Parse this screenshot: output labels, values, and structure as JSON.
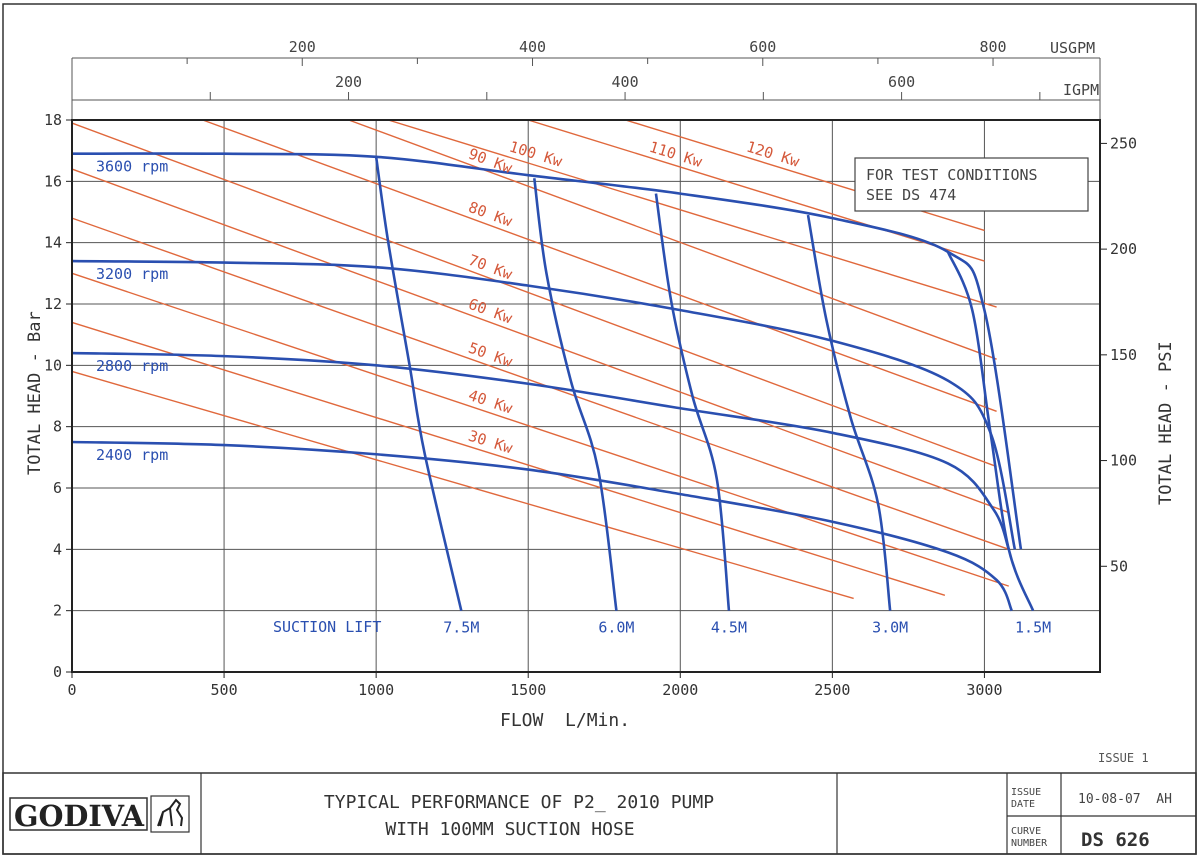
{
  "chart_data": {
    "type": "line",
    "xlabel": "FLOW  L/Min.",
    "ylabel": "TOTAL HEAD - Bar",
    "ylabel_right": "TOTAL HEAD - PSI",
    "xlim": [
      0,
      3380
    ],
    "ylim": [
      0,
      18
    ],
    "x_ticks": [
      0,
      500,
      1000,
      1500,
      2000,
      2500,
      3000
    ],
    "y_ticks": [
      0,
      2,
      4,
      6,
      8,
      10,
      12,
      14,
      16,
      18
    ],
    "psi_ticks": [
      50,
      100,
      150,
      200,
      250
    ],
    "usgpm_ticks": [
      200,
      400,
      600,
      800
    ],
    "usgpm_unit": "USGPM",
    "igpm_ticks": [
      200,
      400,
      600
    ],
    "igpm_unit": "IGPM",
    "grid": true,
    "note_lines": [
      "FOR TEST CONDITIONS",
      "SEE DS 474"
    ],
    "suction_lift_label": "SUCTION LIFT",
    "speed_curves": [
      {
        "name": "3600 rpm",
        "points": [
          [
            0,
            16.9
          ],
          [
            500,
            16.9
          ],
          [
            1000,
            16.8
          ],
          [
            1500,
            16.2
          ],
          [
            2000,
            15.6
          ],
          [
            2500,
            14.8
          ],
          [
            2880,
            13.7
          ],
          [
            3000,
            11.8
          ],
          [
            3120,
            4.0
          ]
        ]
      },
      {
        "name": "3200 rpm",
        "points": [
          [
            0,
            13.4
          ],
          [
            500,
            13.35
          ],
          [
            1000,
            13.2
          ],
          [
            1500,
            12.6
          ],
          [
            2000,
            11.8
          ],
          [
            2500,
            10.8
          ],
          [
            2880,
            9.5
          ],
          [
            3020,
            7.8
          ],
          [
            3100,
            4.0
          ]
        ]
      },
      {
        "name": "2800 rpm",
        "points": [
          [
            0,
            10.4
          ],
          [
            500,
            10.3
          ],
          [
            1000,
            10.0
          ],
          [
            1500,
            9.4
          ],
          [
            2000,
            8.6
          ],
          [
            2500,
            7.8
          ],
          [
            2880,
            6.8
          ],
          [
            3030,
            5.3
          ],
          [
            3080,
            4.0
          ]
        ]
      },
      {
        "name": "2400 rpm",
        "points": [
          [
            0,
            7.5
          ],
          [
            500,
            7.4
          ],
          [
            1000,
            7.1
          ],
          [
            1500,
            6.6
          ],
          [
            2000,
            5.8
          ],
          [
            2500,
            4.9
          ],
          [
            2880,
            3.9
          ],
          [
            3040,
            3.0
          ],
          [
            3090,
            2.0
          ]
        ]
      }
    ],
    "suction_lift_curves": [
      {
        "name": "7.5M",
        "points": [
          [
            1000,
            16.8
          ],
          [
            1040,
            14.0
          ],
          [
            1110,
            10.0
          ],
          [
            1160,
            7.1
          ],
          [
            1280,
            2.0
          ]
        ]
      },
      {
        "name": "6.0M",
        "points": [
          [
            1520,
            16.1
          ],
          [
            1560,
            13.0
          ],
          [
            1640,
            9.5
          ],
          [
            1730,
            6.6
          ],
          [
            1790,
            2.0
          ]
        ]
      },
      {
        "name": "4.5M",
        "points": [
          [
            1920,
            15.6
          ],
          [
            1970,
            12.1
          ],
          [
            2040,
            9.0
          ],
          [
            2120,
            6.3
          ],
          [
            2160,
            2.0
          ]
        ]
      },
      {
        "name": "3.0M",
        "points": [
          [
            2420,
            14.9
          ],
          [
            2480,
            11.5
          ],
          [
            2560,
            8.3
          ],
          [
            2650,
            5.5
          ],
          [
            2690,
            2.0
          ]
        ]
      },
      {
        "name": "1.5M",
        "points": [
          [
            2880,
            13.7
          ],
          [
            2960,
            11.8
          ],
          [
            3020,
            7.8
          ],
          [
            3080,
            4.0
          ],
          [
            3160,
            2.0
          ]
        ]
      }
    ],
    "power_lines": [
      {
        "name": "",
        "label": "",
        "points": [
          [
            0,
            9.8
          ],
          [
            2570,
            2.4
          ]
        ]
      },
      {
        "name": "30 Kw",
        "label": "30 Kw",
        "points": [
          [
            0,
            11.4
          ],
          [
            2870,
            2.5
          ]
        ]
      },
      {
        "name": "40 Kw",
        "label": "40 Kw",
        "points": [
          [
            0,
            13.0
          ],
          [
            3080,
            2.8
          ]
        ]
      },
      {
        "name": "50 Kw",
        "label": "50 Kw",
        "points": [
          [
            0,
            14.8
          ],
          [
            3080,
            4.0
          ]
        ]
      },
      {
        "name": "60 Kw",
        "label": "60 Kw",
        "points": [
          [
            0,
            16.4
          ],
          [
            3080,
            5.2
          ]
        ]
      },
      {
        "name": "70 Kw",
        "label": "70 Kw",
        "points": [
          [
            0,
            17.9
          ],
          [
            3040,
            6.7
          ]
        ]
      },
      {
        "name": "80 Kw",
        "label": "80 Kw",
        "points": [
          [
            430,
            18.0
          ],
          [
            3040,
            8.5
          ]
        ]
      },
      {
        "name": "90 Kw",
        "label": "90 Kw",
        "points": [
          [
            910,
            18.0
          ],
          [
            3040,
            10.2
          ]
        ]
      },
      {
        "name": "100 Kw",
        "label": "100 Kw",
        "points": [
          [
            1040,
            18.0
          ],
          [
            3040,
            11.9
          ]
        ]
      },
      {
        "name": "110 Kw",
        "label": "110 Kw",
        "points": [
          [
            1500,
            18.0
          ],
          [
            3000,
            13.4
          ]
        ]
      },
      {
        "name": "120 Kw",
        "label": "120 Kw",
        "points": [
          [
            1820,
            18.0
          ],
          [
            3000,
            14.4
          ]
        ]
      }
    ]
  },
  "title_block": {
    "issue_label": "ISSUE 1",
    "logo_text": "GODIVA",
    "title_line1": "TYPICAL PERFORMANCE OF P2_ 2010 PUMP",
    "title_line2": "WITH 100MM SUCTION HOSE",
    "issue_date_label": "ISSUE DATE",
    "issue_date_value": "10-08-07  AH",
    "curve_number_label": "CURVE NUMBER",
    "curve_number_value": "DS 626"
  },
  "colors": {
    "speed_curve": "#2a4fb0",
    "power_line": "#e0683c",
    "grid": "#555555",
    "label_blue": "#2a4fb0",
    "label_red": "#d4583a"
  }
}
